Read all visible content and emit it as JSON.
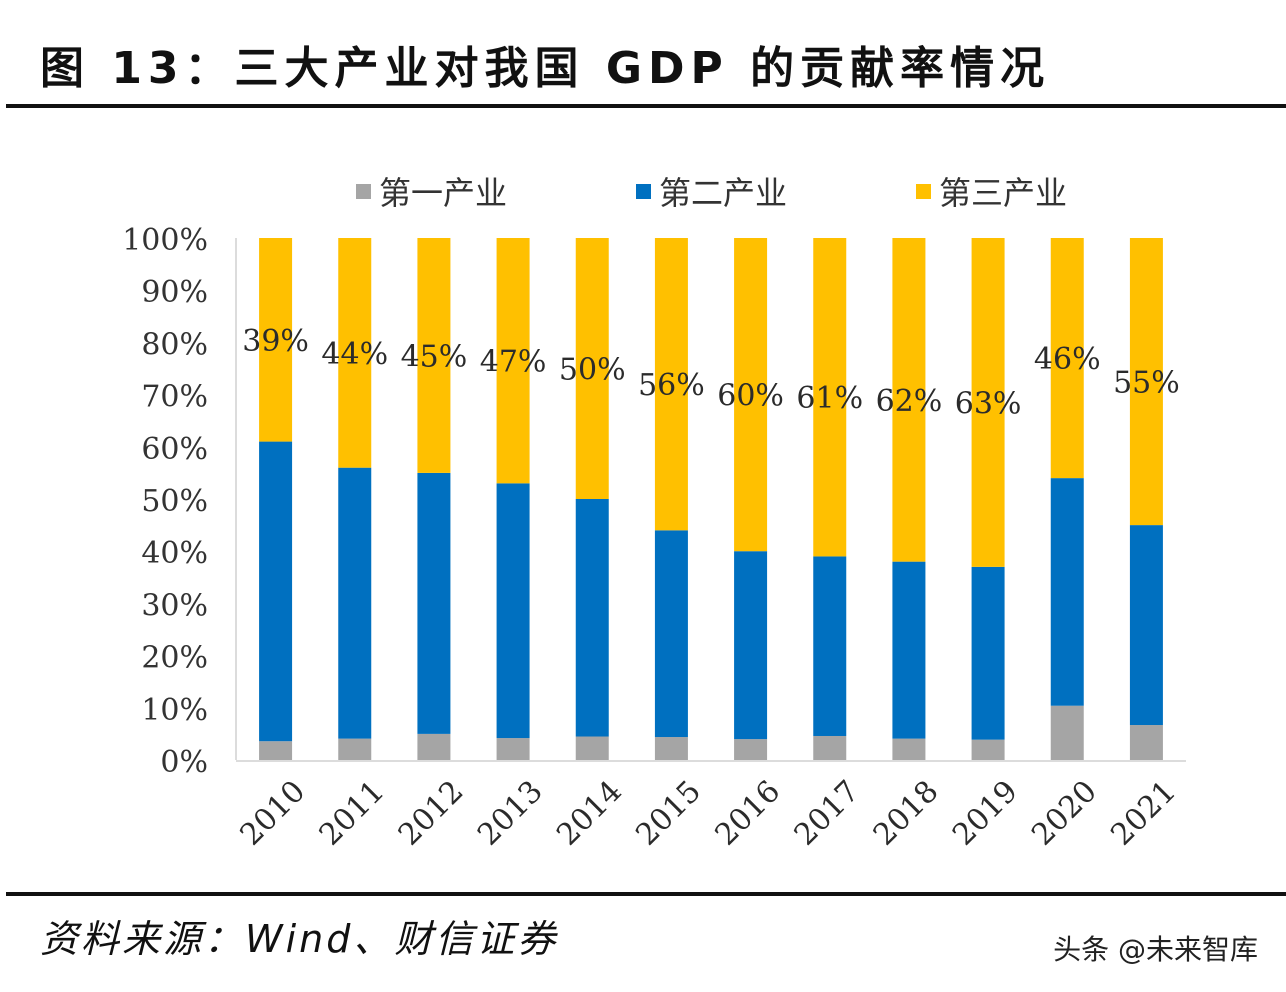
{
  "title": "图 13：三大产业对我国 GDP 的贡献率情况",
  "source": "资料来源：Wind、财信证券",
  "watermark": "头条 @未来智库",
  "chart_data": {
    "type": "bar",
    "stacked": true,
    "title": "三大产业对我国 GDP 的贡献率情况",
    "xlabel": "",
    "ylabel": "",
    "ylim": [
      0,
      100
    ],
    "yticks": [
      "0%",
      "10%",
      "20%",
      "30%",
      "40%",
      "50%",
      "60%",
      "70%",
      "80%",
      "90%",
      "100%"
    ],
    "grid": false,
    "legend_position": "top-center",
    "categories": [
      "2010",
      "2011",
      "2012",
      "2013",
      "2014",
      "2015",
      "2016",
      "2017",
      "2018",
      "2019",
      "2020",
      "2021"
    ],
    "series": [
      {
        "name": "第一产业",
        "color": "#A5A5A5",
        "values": [
          3.6,
          4.1,
          5.0,
          4.2,
          4.5,
          4.4,
          4.0,
          4.6,
          4.1,
          3.9,
          10.4,
          6.7
        ]
      },
      {
        "name": "第二产业",
        "color": "#0070C0",
        "values": [
          57.4,
          51.9,
          50.0,
          48.8,
          45.5,
          39.6,
          36.0,
          34.4,
          33.9,
          33.1,
          43.6,
          38.3
        ]
      },
      {
        "name": "第三产业",
        "color": "#FFC000",
        "values": [
          39,
          44,
          45,
          47,
          50,
          56,
          60,
          61,
          62,
          63,
          46,
          55
        ]
      }
    ],
    "data_labels": [
      "39%",
      "44%",
      "45%",
      "47%",
      "50%",
      "56%",
      "60%",
      "61%",
      "62%",
      "63%",
      "46%",
      "55%"
    ],
    "data_label_series": "第三产业"
  }
}
